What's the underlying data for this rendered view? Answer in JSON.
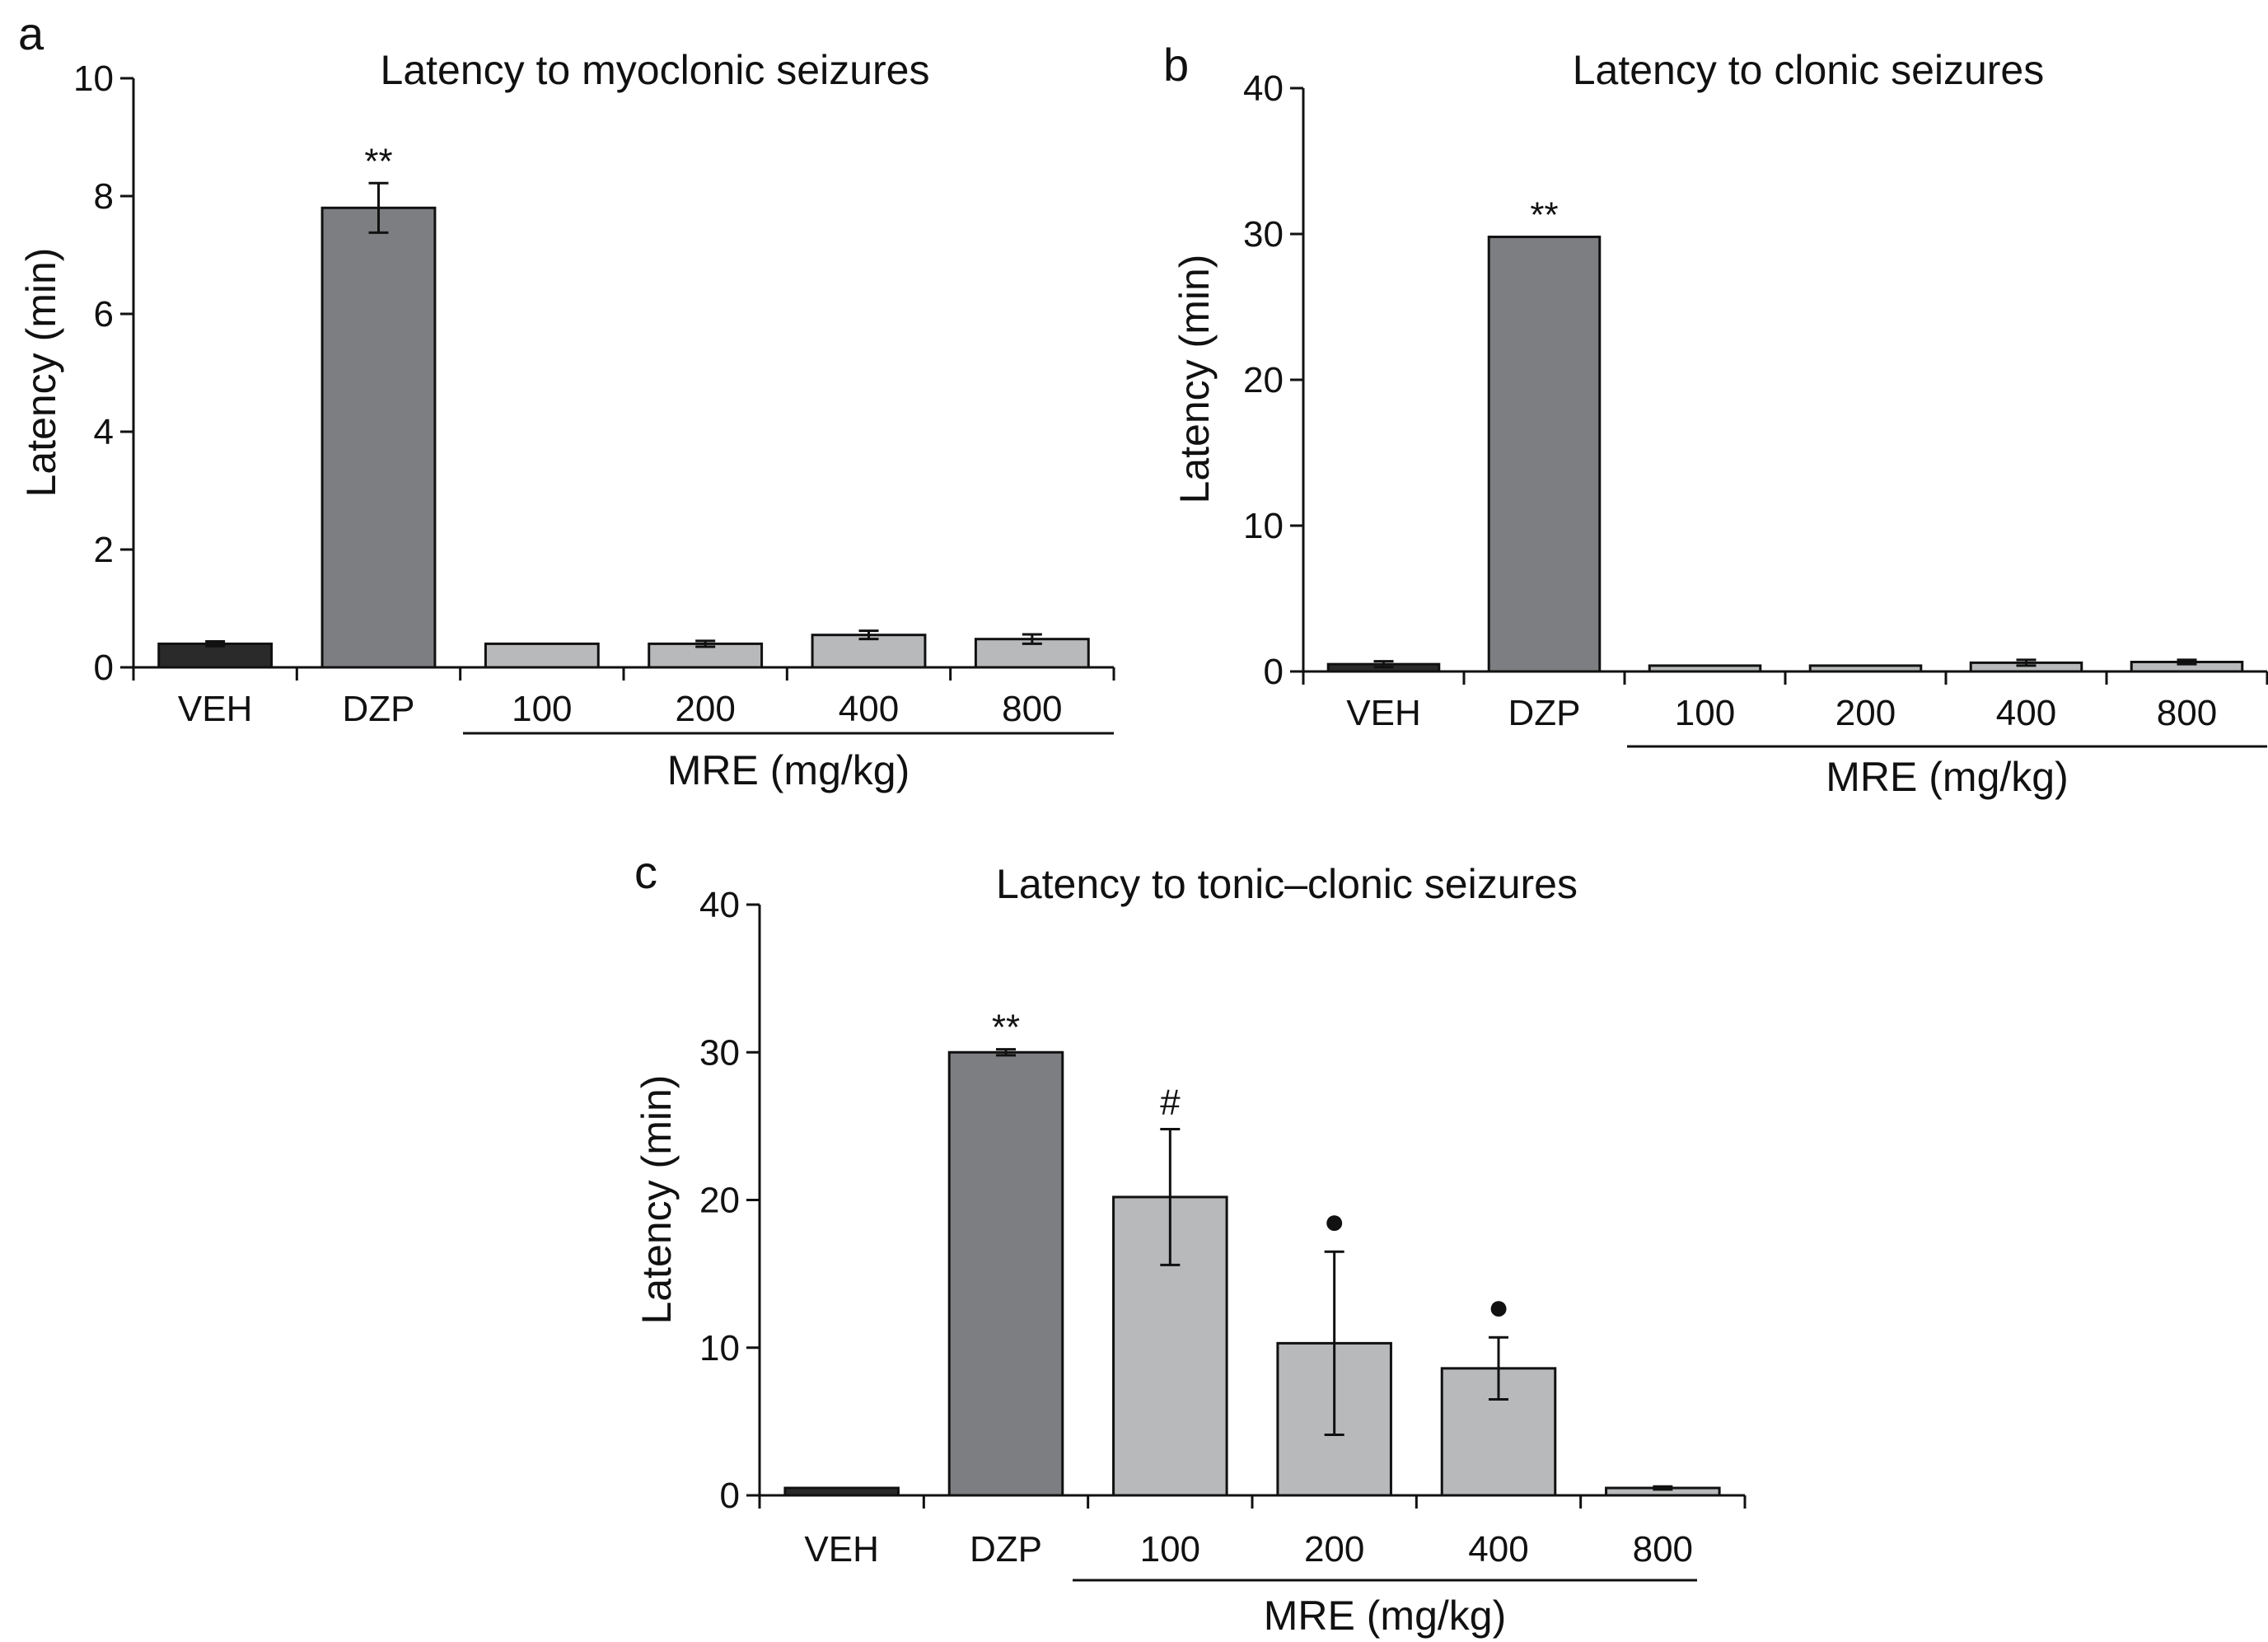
{
  "chart_data": [
    {
      "panel": "a",
      "type": "bar",
      "title": "Latency to myoclonic seizures",
      "ylabel": "Latency (min)",
      "ylim": [
        0,
        10
      ],
      "yticks": [
        "0",
        "2",
        "4",
        "6",
        "8",
        "10"
      ],
      "categories": [
        "VEH",
        "DZP",
        "100",
        "200",
        "400",
        "800"
      ],
      "group_label": "MRE (mg/kg)",
      "values": [
        0.4,
        7.8,
        0.4,
        0.4,
        0.55,
        0.48
      ],
      "errors": [
        0.04,
        0.42,
        0.0,
        0.05,
        0.07,
        0.08
      ],
      "annotations": [
        "",
        "**",
        "",
        "",
        "",
        ""
      ],
      "colors": [
        "#2a2a2a",
        "#7d7e82",
        "#b8b9bb",
        "#b8b9bb",
        "#b8b9bb",
        "#b8b9bb"
      ]
    },
    {
      "panel": "b",
      "type": "bar",
      "title": "Latency to clonic seizures",
      "ylabel": "Latency (min)",
      "ylim": [
        0,
        40
      ],
      "yticks": [
        "0",
        "10",
        "20",
        "30",
        "40"
      ],
      "categories": [
        "VEH",
        "DZP",
        "100",
        "200",
        "400",
        "800"
      ],
      "group_label": "MRE (mg/kg)",
      "values": [
        0.5,
        29.8,
        0.4,
        0.4,
        0.6,
        0.65
      ],
      "errors": [
        0.2,
        0.0,
        0.0,
        0.0,
        0.2,
        0.15
      ],
      "annotations": [
        "",
        "**",
        "",
        "",
        "",
        ""
      ],
      "colors": [
        "#2a2a2a",
        "#7d7e82",
        "#b8b9bb",
        "#b8b9bb",
        "#b8b9bb",
        "#b8b9bb"
      ]
    },
    {
      "panel": "c",
      "type": "bar",
      "title": "Latency to tonic–clonic seizures",
      "ylabel": "Latency (min)",
      "ylim": [
        0,
        40
      ],
      "yticks": [
        "0",
        "10",
        "20",
        "30",
        "40"
      ],
      "categories": [
        "VEH",
        "DZP",
        "100",
        "200",
        "400",
        "800"
      ],
      "group_label": "MRE (mg/kg)",
      "values": [
        0.5,
        30.0,
        20.2,
        10.3,
        8.6,
        0.5
      ],
      "errors": [
        0.0,
        0.2,
        4.6,
        6.2,
        2.1,
        0.1
      ],
      "annotations": [
        "",
        "**",
        "#",
        "●",
        "●",
        ""
      ],
      "colors": [
        "#2a2a2a",
        "#7d7e82",
        "#b8b9bb",
        "#b8b9bb",
        "#b8b9bb",
        "#b8b9bb"
      ]
    }
  ]
}
